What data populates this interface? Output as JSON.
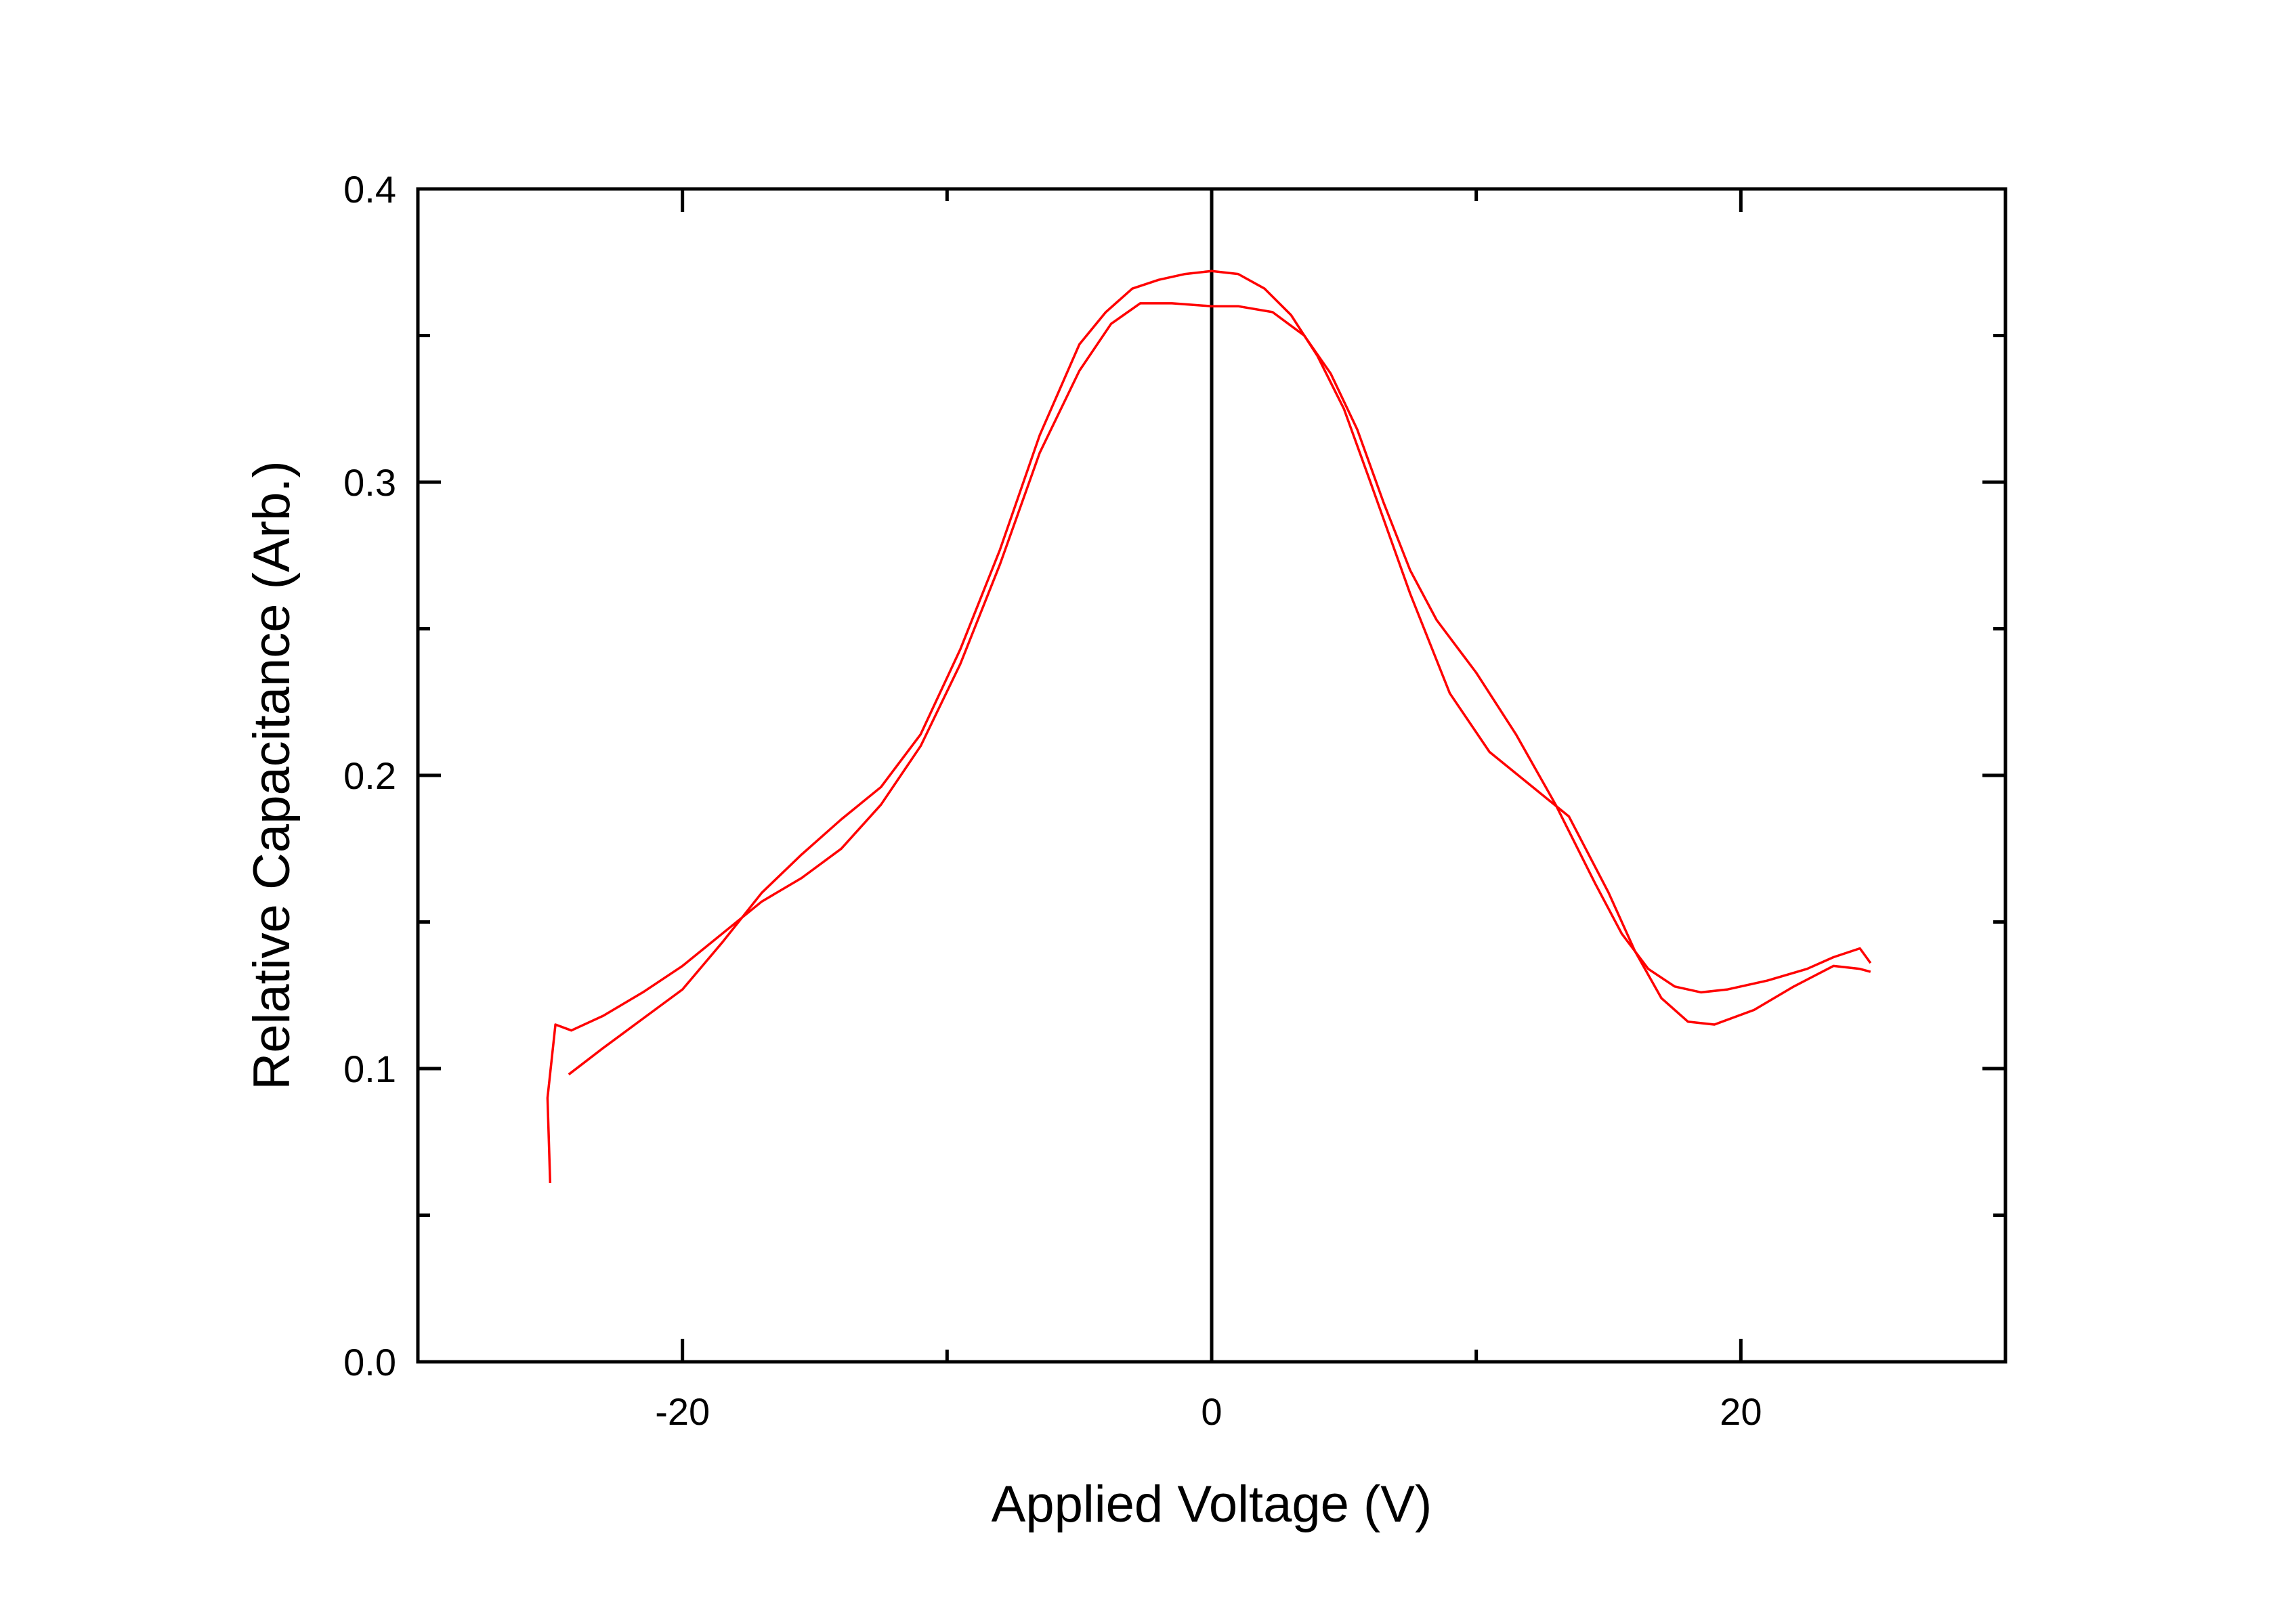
{
  "chart_data": {
    "type": "line",
    "title": "",
    "xlabel": "Applied Voltage (V)",
    "ylabel": "Relative Capacitance (Arb.)",
    "xlim": [
      -30,
      30
    ],
    "ylim": [
      0.0,
      0.4
    ],
    "x_ticks": [
      -20,
      0,
      20
    ],
    "x_tick_labels": [
      "-20",
      "0",
      "20"
    ],
    "y_ticks": [
      0.0,
      0.1,
      0.2,
      0.3,
      0.4
    ],
    "y_tick_labels": [
      "0.0",
      "0.1",
      "0.2",
      "0.3",
      "0.4"
    ],
    "grid": false,
    "legend": "none",
    "reference_lines": [
      {
        "orientation": "vertical",
        "x": 0,
        "color": "#000000"
      }
    ],
    "line_color": "#ff0000",
    "series": [
      {
        "color": "#ff0000",
        "x": [
          -25.0,
          -25.1,
          -24.8,
          -24.2,
          -23.0,
          -21.5,
          -20.0,
          -18.5,
          -17.0,
          -15.5,
          -14.0,
          -12.5,
          -11.0,
          -9.5,
          -8.0,
          -6.5,
          -5.0,
          -3.8,
          -2.7,
          -1.5,
          0.0,
          1.0,
          2.3,
          3.5,
          4.5,
          5.5,
          6.5,
          7.5,
          8.5,
          10.0,
          11.5,
          13.0,
          14.5,
          15.5,
          16.5,
          17.5,
          18.5,
          19.5,
          21.0,
          22.5,
          23.5,
          24.5,
          24.9
        ],
        "y": [
          0.061,
          0.09,
          0.115,
          0.113,
          0.118,
          0.126,
          0.135,
          0.146,
          0.157,
          0.165,
          0.175,
          0.19,
          0.21,
          0.238,
          0.272,
          0.31,
          0.338,
          0.354,
          0.361,
          0.361,
          0.36,
          0.36,
          0.358,
          0.35,
          0.337,
          0.318,
          0.293,
          0.27,
          0.253,
          0.235,
          0.214,
          0.19,
          0.163,
          0.146,
          0.134,
          0.128,
          0.126,
          0.127,
          0.13,
          0.134,
          0.138,
          0.141,
          0.136
        ]
      },
      {
        "color": "#ff0000",
        "x": [
          24.9,
          24.5,
          23.5,
          22.0,
          20.5,
          19.0,
          18.0,
          17.0,
          16.0,
          15.0,
          13.5,
          12.0,
          10.5,
          9.0,
          7.5,
          6.0,
          5.0,
          4.0,
          3.0,
          2.0,
          1.0,
          0.0,
          -1.0,
          -2.0,
          -3.0,
          -4.0,
          -5.0,
          -6.5,
          -8.0,
          -9.5,
          -11.0,
          -12.5,
          -14.0,
          -15.5,
          -17.0,
          -18.5,
          -20.0,
          -21.5,
          -23.0,
          -24.3
        ],
        "y": [
          0.133,
          0.134,
          0.135,
          0.128,
          0.12,
          0.115,
          0.116,
          0.124,
          0.14,
          0.16,
          0.186,
          0.197,
          0.208,
          0.228,
          0.262,
          0.3,
          0.325,
          0.343,
          0.357,
          0.366,
          0.371,
          0.372,
          0.371,
          0.369,
          0.366,
          0.358,
          0.347,
          0.316,
          0.277,
          0.243,
          0.214,
          0.196,
          0.185,
          0.173,
          0.16,
          0.143,
          0.127,
          0.117,
          0.107,
          0.098
        ]
      }
    ]
  }
}
